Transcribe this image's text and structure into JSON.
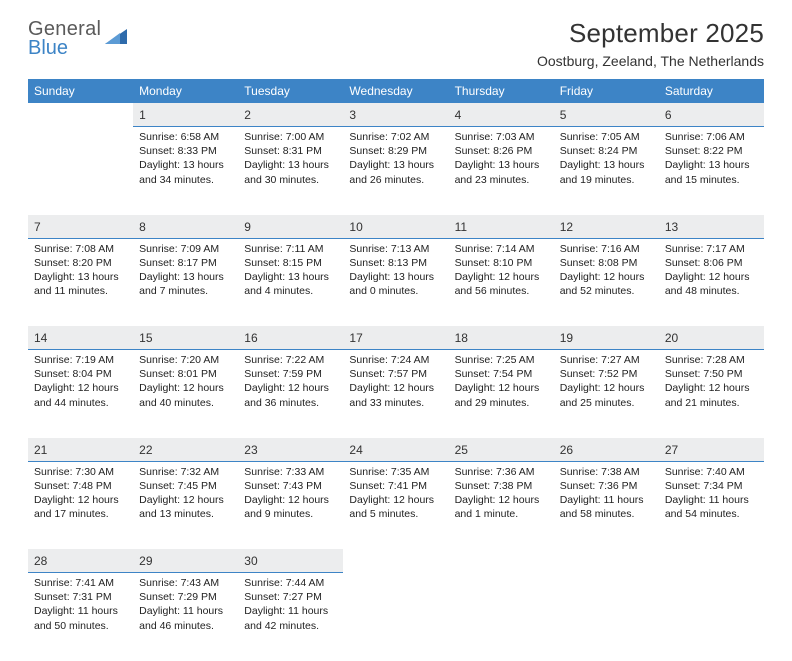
{
  "logo": {
    "word1": "General",
    "word2": "Blue"
  },
  "title": "September 2025",
  "subtitle": "Oostburg, Zeeland, The Netherlands",
  "colors": {
    "header_bg": "#3d84c6",
    "header_text": "#ffffff",
    "daynum_bg": "#ecedee",
    "daynum_border": "#3d84c6",
    "page_bg": "#ffffff",
    "text": "#222222",
    "logo_gray": "#5a5a5a",
    "logo_blue": "#3d84c6"
  },
  "dayHeaders": [
    "Sunday",
    "Monday",
    "Tuesday",
    "Wednesday",
    "Thursday",
    "Friday",
    "Saturday"
  ],
  "weeks": [
    [
      {
        "n": "",
        "lines": []
      },
      {
        "n": "1",
        "lines": [
          "Sunrise: 6:58 AM",
          "Sunset: 8:33 PM",
          "Daylight: 13 hours and 34 minutes."
        ]
      },
      {
        "n": "2",
        "lines": [
          "Sunrise: 7:00 AM",
          "Sunset: 8:31 PM",
          "Daylight: 13 hours and 30 minutes."
        ]
      },
      {
        "n": "3",
        "lines": [
          "Sunrise: 7:02 AM",
          "Sunset: 8:29 PM",
          "Daylight: 13 hours and 26 minutes."
        ]
      },
      {
        "n": "4",
        "lines": [
          "Sunrise: 7:03 AM",
          "Sunset: 8:26 PM",
          "Daylight: 13 hours and 23 minutes."
        ]
      },
      {
        "n": "5",
        "lines": [
          "Sunrise: 7:05 AM",
          "Sunset: 8:24 PM",
          "Daylight: 13 hours and 19 minutes."
        ]
      },
      {
        "n": "6",
        "lines": [
          "Sunrise: 7:06 AM",
          "Sunset: 8:22 PM",
          "Daylight: 13 hours and 15 minutes."
        ]
      }
    ],
    [
      {
        "n": "7",
        "lines": [
          "Sunrise: 7:08 AM",
          "Sunset: 8:20 PM",
          "Daylight: 13 hours and 11 minutes."
        ]
      },
      {
        "n": "8",
        "lines": [
          "Sunrise: 7:09 AM",
          "Sunset: 8:17 PM",
          "Daylight: 13 hours and 7 minutes."
        ]
      },
      {
        "n": "9",
        "lines": [
          "Sunrise: 7:11 AM",
          "Sunset: 8:15 PM",
          "Daylight: 13 hours and 4 minutes."
        ]
      },
      {
        "n": "10",
        "lines": [
          "Sunrise: 7:13 AM",
          "Sunset: 8:13 PM",
          "Daylight: 13 hours and 0 minutes."
        ]
      },
      {
        "n": "11",
        "lines": [
          "Sunrise: 7:14 AM",
          "Sunset: 8:10 PM",
          "Daylight: 12 hours and 56 minutes."
        ]
      },
      {
        "n": "12",
        "lines": [
          "Sunrise: 7:16 AM",
          "Sunset: 8:08 PM",
          "Daylight: 12 hours and 52 minutes."
        ]
      },
      {
        "n": "13",
        "lines": [
          "Sunrise: 7:17 AM",
          "Sunset: 8:06 PM",
          "Daylight: 12 hours and 48 minutes."
        ]
      }
    ],
    [
      {
        "n": "14",
        "lines": [
          "Sunrise: 7:19 AM",
          "Sunset: 8:04 PM",
          "Daylight: 12 hours and 44 minutes."
        ]
      },
      {
        "n": "15",
        "lines": [
          "Sunrise: 7:20 AM",
          "Sunset: 8:01 PM",
          "Daylight: 12 hours and 40 minutes."
        ]
      },
      {
        "n": "16",
        "lines": [
          "Sunrise: 7:22 AM",
          "Sunset: 7:59 PM",
          "Daylight: 12 hours and 36 minutes."
        ]
      },
      {
        "n": "17",
        "lines": [
          "Sunrise: 7:24 AM",
          "Sunset: 7:57 PM",
          "Daylight: 12 hours and 33 minutes."
        ]
      },
      {
        "n": "18",
        "lines": [
          "Sunrise: 7:25 AM",
          "Sunset: 7:54 PM",
          "Daylight: 12 hours and 29 minutes."
        ]
      },
      {
        "n": "19",
        "lines": [
          "Sunrise: 7:27 AM",
          "Sunset: 7:52 PM",
          "Daylight: 12 hours and 25 minutes."
        ]
      },
      {
        "n": "20",
        "lines": [
          "Sunrise: 7:28 AM",
          "Sunset: 7:50 PM",
          "Daylight: 12 hours and 21 minutes."
        ]
      }
    ],
    [
      {
        "n": "21",
        "lines": [
          "Sunrise: 7:30 AM",
          "Sunset: 7:48 PM",
          "Daylight: 12 hours and 17 minutes."
        ]
      },
      {
        "n": "22",
        "lines": [
          "Sunrise: 7:32 AM",
          "Sunset: 7:45 PM",
          "Daylight: 12 hours and 13 minutes."
        ]
      },
      {
        "n": "23",
        "lines": [
          "Sunrise: 7:33 AM",
          "Sunset: 7:43 PM",
          "Daylight: 12 hours and 9 minutes."
        ]
      },
      {
        "n": "24",
        "lines": [
          "Sunrise: 7:35 AM",
          "Sunset: 7:41 PM",
          "Daylight: 12 hours and 5 minutes."
        ]
      },
      {
        "n": "25",
        "lines": [
          "Sunrise: 7:36 AM",
          "Sunset: 7:38 PM",
          "Daylight: 12 hours and 1 minute."
        ]
      },
      {
        "n": "26",
        "lines": [
          "Sunrise: 7:38 AM",
          "Sunset: 7:36 PM",
          "Daylight: 11 hours and 58 minutes."
        ]
      },
      {
        "n": "27",
        "lines": [
          "Sunrise: 7:40 AM",
          "Sunset: 7:34 PM",
          "Daylight: 11 hours and 54 minutes."
        ]
      }
    ],
    [
      {
        "n": "28",
        "lines": [
          "Sunrise: 7:41 AM",
          "Sunset: 7:31 PM",
          "Daylight: 11 hours and 50 minutes."
        ]
      },
      {
        "n": "29",
        "lines": [
          "Sunrise: 7:43 AM",
          "Sunset: 7:29 PM",
          "Daylight: 11 hours and 46 minutes."
        ]
      },
      {
        "n": "30",
        "lines": [
          "Sunrise: 7:44 AM",
          "Sunset: 7:27 PM",
          "Daylight: 11 hours and 42 minutes."
        ]
      },
      {
        "n": "",
        "lines": []
      },
      {
        "n": "",
        "lines": []
      },
      {
        "n": "",
        "lines": []
      },
      {
        "n": "",
        "lines": []
      }
    ]
  ]
}
